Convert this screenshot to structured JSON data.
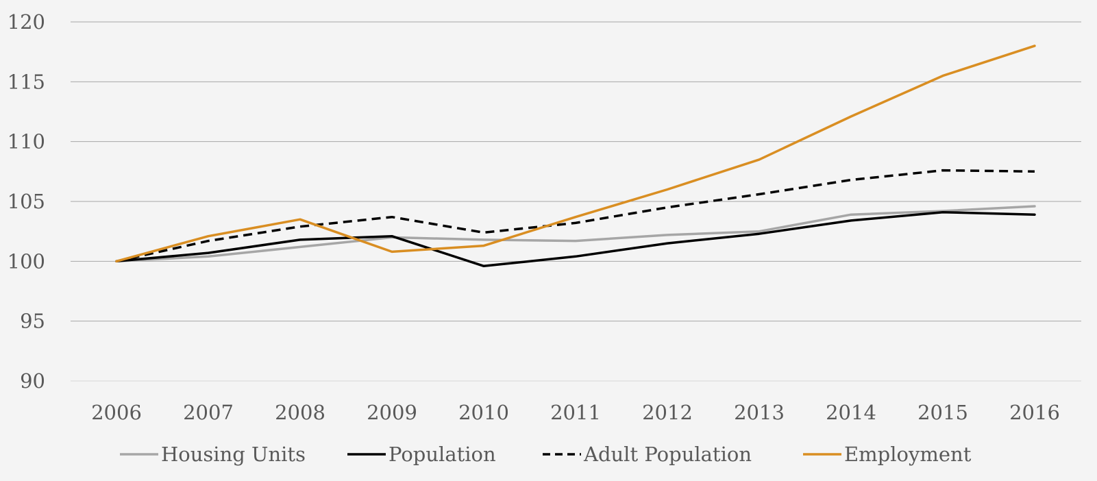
{
  "chart_data": {
    "type": "line",
    "title": "",
    "xlabel": "",
    "ylabel": "",
    "x": [
      "2006",
      "2007",
      "2008",
      "2009",
      "2010",
      "2011",
      "2012",
      "2013",
      "2014",
      "2015",
      "2016"
    ],
    "ylim": [
      90,
      120
    ],
    "yticks": [
      90,
      95,
      100,
      105,
      110,
      115,
      120
    ],
    "grid": true,
    "legend_position": "bottom",
    "series": [
      {
        "name": "Housing Units",
        "color": "#a6a6a6",
        "dash": "solid",
        "values": [
          100.0,
          100.4,
          101.2,
          102.0,
          101.8,
          101.7,
          102.2,
          102.5,
          103.9,
          104.2,
          104.6
        ]
      },
      {
        "name": "Population",
        "color": "#000000",
        "dash": "solid",
        "values": [
          100.0,
          100.7,
          101.8,
          102.1,
          99.6,
          100.4,
          101.5,
          102.3,
          103.4,
          104.1,
          103.9
        ]
      },
      {
        "name": "Adult Population",
        "color": "#000000",
        "dash": "dashed",
        "values": [
          100.0,
          101.7,
          102.9,
          103.7,
          102.4,
          103.2,
          104.5,
          105.6,
          106.8,
          107.6,
          107.5
        ]
      },
      {
        "name": "Employment",
        "color": "#d98e22",
        "dash": "solid",
        "values": [
          100.0,
          102.1,
          103.5,
          100.8,
          101.3,
          103.7,
          106.0,
          108.5,
          112.1,
          115.5,
          118.0
        ]
      }
    ]
  }
}
